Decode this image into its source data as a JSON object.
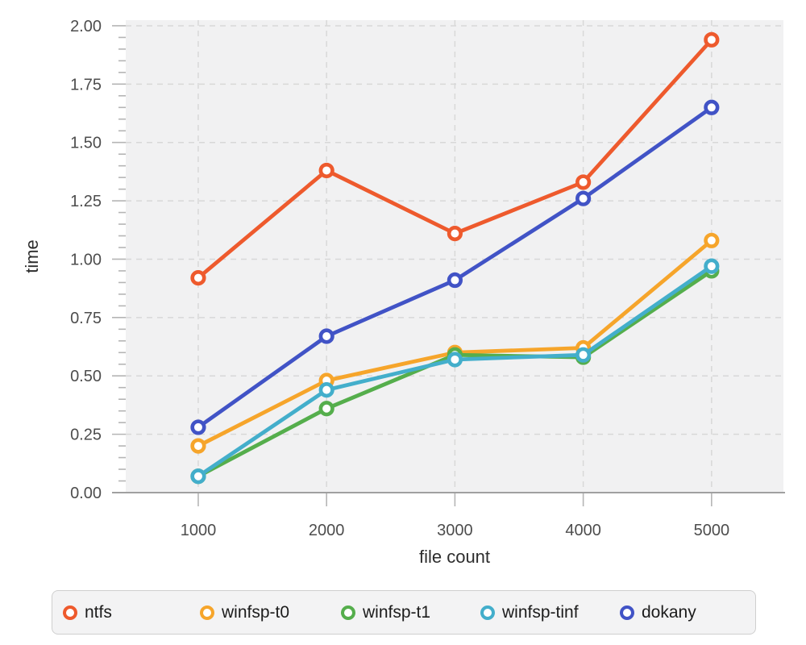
{
  "chart_data": {
    "type": "line",
    "title": "",
    "xlabel": "file count",
    "ylabel": "time",
    "x": [
      1000,
      2000,
      3000,
      4000,
      5000
    ],
    "series": [
      {
        "name": "ntfs",
        "color": "#ee5a2d",
        "values": [
          0.92,
          1.38,
          1.11,
          1.33,
          1.94
        ]
      },
      {
        "name": "winfsp-t0",
        "color": "#f6a52b",
        "values": [
          0.2,
          0.48,
          0.6,
          0.62,
          1.08
        ]
      },
      {
        "name": "winfsp-t1",
        "color": "#55ae4c",
        "values": [
          0.07,
          0.36,
          0.59,
          0.58,
          0.95
        ]
      },
      {
        "name": "winfsp-tinf",
        "color": "#43aecb",
        "values": [
          0.07,
          0.44,
          0.57,
          0.59,
          0.97
        ]
      },
      {
        "name": "dokany",
        "color": "#4153c6",
        "values": [
          0.28,
          0.67,
          0.91,
          1.26,
          1.65
        ]
      }
    ],
    "xlim": [
      435,
      5560
    ],
    "ylim": [
      0,
      2.024
    ],
    "xticks": {
      "values": [
        1000,
        2000,
        3000,
        4000,
        5000
      ],
      "labels": [
        "1000",
        "2000",
        "3000",
        "4000",
        "5000"
      ]
    },
    "yticks": {
      "values": [
        0,
        0.25,
        0.5,
        0.75,
        1.0,
        1.25,
        1.5,
        1.75,
        2.0
      ],
      "labels": [
        "0.00",
        "0.25",
        "0.50",
        "0.75",
        "1.00",
        "1.25",
        "1.50",
        "1.75",
        "2.00"
      ]
    },
    "y_minor_tick_step": 0.05,
    "grid": "dashed",
    "legend_position": "bottom",
    "marker": "open-circle",
    "colors": {
      "plot_background": "#f1f1f2",
      "gridline": "#d8d8d8",
      "axis_line": "#a0a0a0",
      "tick_mark": "#b5b5b5",
      "tick_label": "#4d4d4d",
      "axis_title": "#2d2d2d",
      "legend_text": "#1c1c1c",
      "legend_background": "#f3f3f4",
      "legend_border": "#cfcfcf"
    }
  }
}
